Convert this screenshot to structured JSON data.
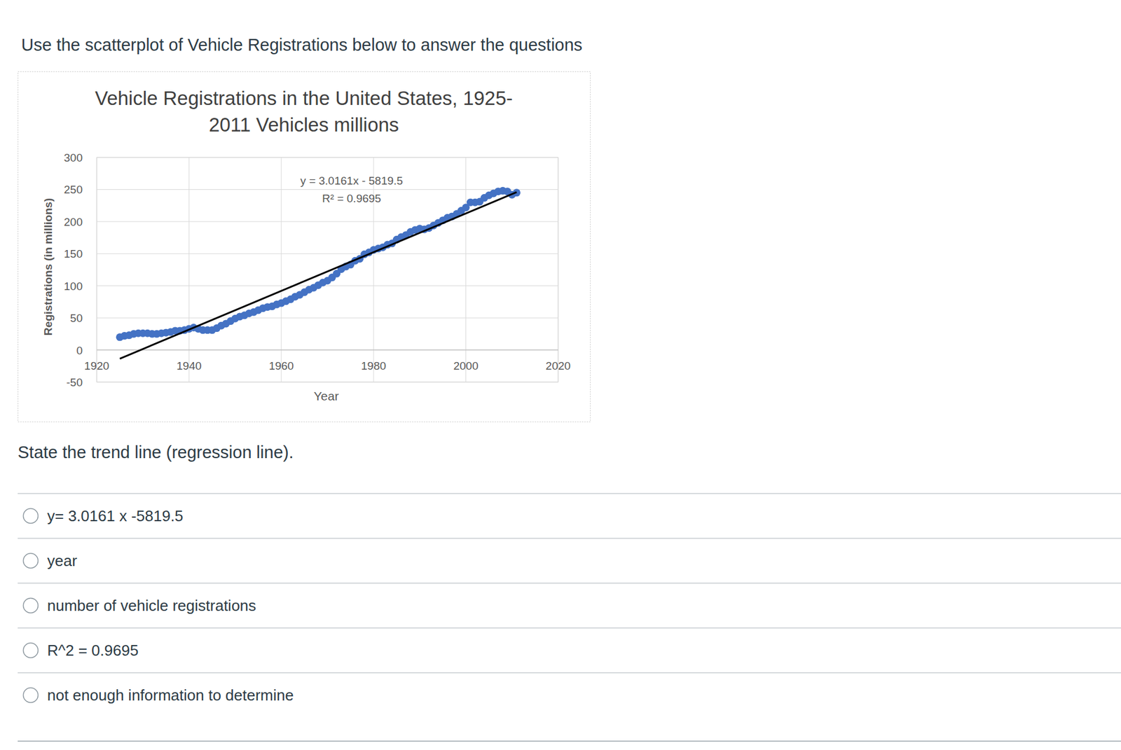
{
  "header": {
    "instruction": "Use the scatterplot of Vehicle Registrations below to answer the questions"
  },
  "chart_data": {
    "type": "scatter",
    "title": "Vehicle Registrations in the United States, 1925-2011 Vehicles millions",
    "x_label": "Year",
    "y_label": "Registrations (in millions)",
    "annotations": [
      "y = 3.0161x - 5819.5",
      "R² = 0.9695"
    ],
    "xlim": [
      1920,
      2020
    ],
    "ylim": [
      -50,
      300
    ],
    "xticks": [
      1920,
      1940,
      1960,
      1980,
      2000,
      2020
    ],
    "yticks": [
      -50,
      0,
      50,
      100,
      150,
      200,
      250,
      300
    ],
    "grid": true,
    "series": [
      {
        "type": "scatter",
        "color": "#4472c4",
        "marker": "circle",
        "x": [
          1925,
          1926,
          1927,
          1928,
          1929,
          1930,
          1931,
          1932,
          1933,
          1934,
          1935,
          1936,
          1937,
          1938,
          1939,
          1940,
          1941,
          1942,
          1943,
          1944,
          1945,
          1946,
          1947,
          1948,
          1949,
          1950,
          1951,
          1952,
          1953,
          1954,
          1955,
          1956,
          1957,
          1958,
          1959,
          1960,
          1961,
          1962,
          1963,
          1964,
          1965,
          1966,
          1967,
          1968,
          1969,
          1970,
          1971,
          1972,
          1973,
          1974,
          1975,
          1976,
          1977,
          1978,
          1979,
          1980,
          1981,
          1982,
          1983,
          1984,
          1985,
          1986,
          1987,
          1988,
          1989,
          1990,
          1991,
          1992,
          1993,
          1994,
          1995,
          1996,
          1997,
          1998,
          1999,
          2000,
          2001,
          2002,
          2003,
          2004,
          2005,
          2006,
          2007,
          2008,
          2009,
          2010,
          2011
        ],
        "values": [
          20,
          22,
          23,
          25,
          26,
          26,
          26,
          25,
          25,
          26,
          27,
          28,
          30,
          30,
          31,
          33,
          35,
          33,
          31,
          31,
          31,
          34,
          38,
          41,
          45,
          49,
          52,
          54,
          57,
          59,
          62,
          65,
          67,
          68,
          71,
          73,
          76,
          79,
          83,
          86,
          90,
          94,
          97,
          101,
          105,
          108,
          113,
          119,
          126,
          130,
          133,
          139,
          142,
          149,
          152,
          156,
          158,
          160,
          164,
          166,
          172,
          176,
          179,
          184,
          187,
          189,
          188,
          190,
          194,
          198,
          202,
          206,
          208,
          212,
          217,
          222,
          230,
          230,
          231,
          237,
          241,
          244,
          247,
          248,
          247,
          242,
          245
        ]
      },
      {
        "type": "line",
        "color": "#000000",
        "line_style": "solid",
        "x": [
          1925,
          2011
        ],
        "values": [
          -13.5,
          245.9
        ]
      }
    ]
  },
  "question": "State the trend line (regression line).",
  "options": [
    "y= 3.0161 x -5819.5",
    "year",
    "number of vehicle registrations",
    "R^2 = 0.9695",
    "not enough information to determine"
  ]
}
